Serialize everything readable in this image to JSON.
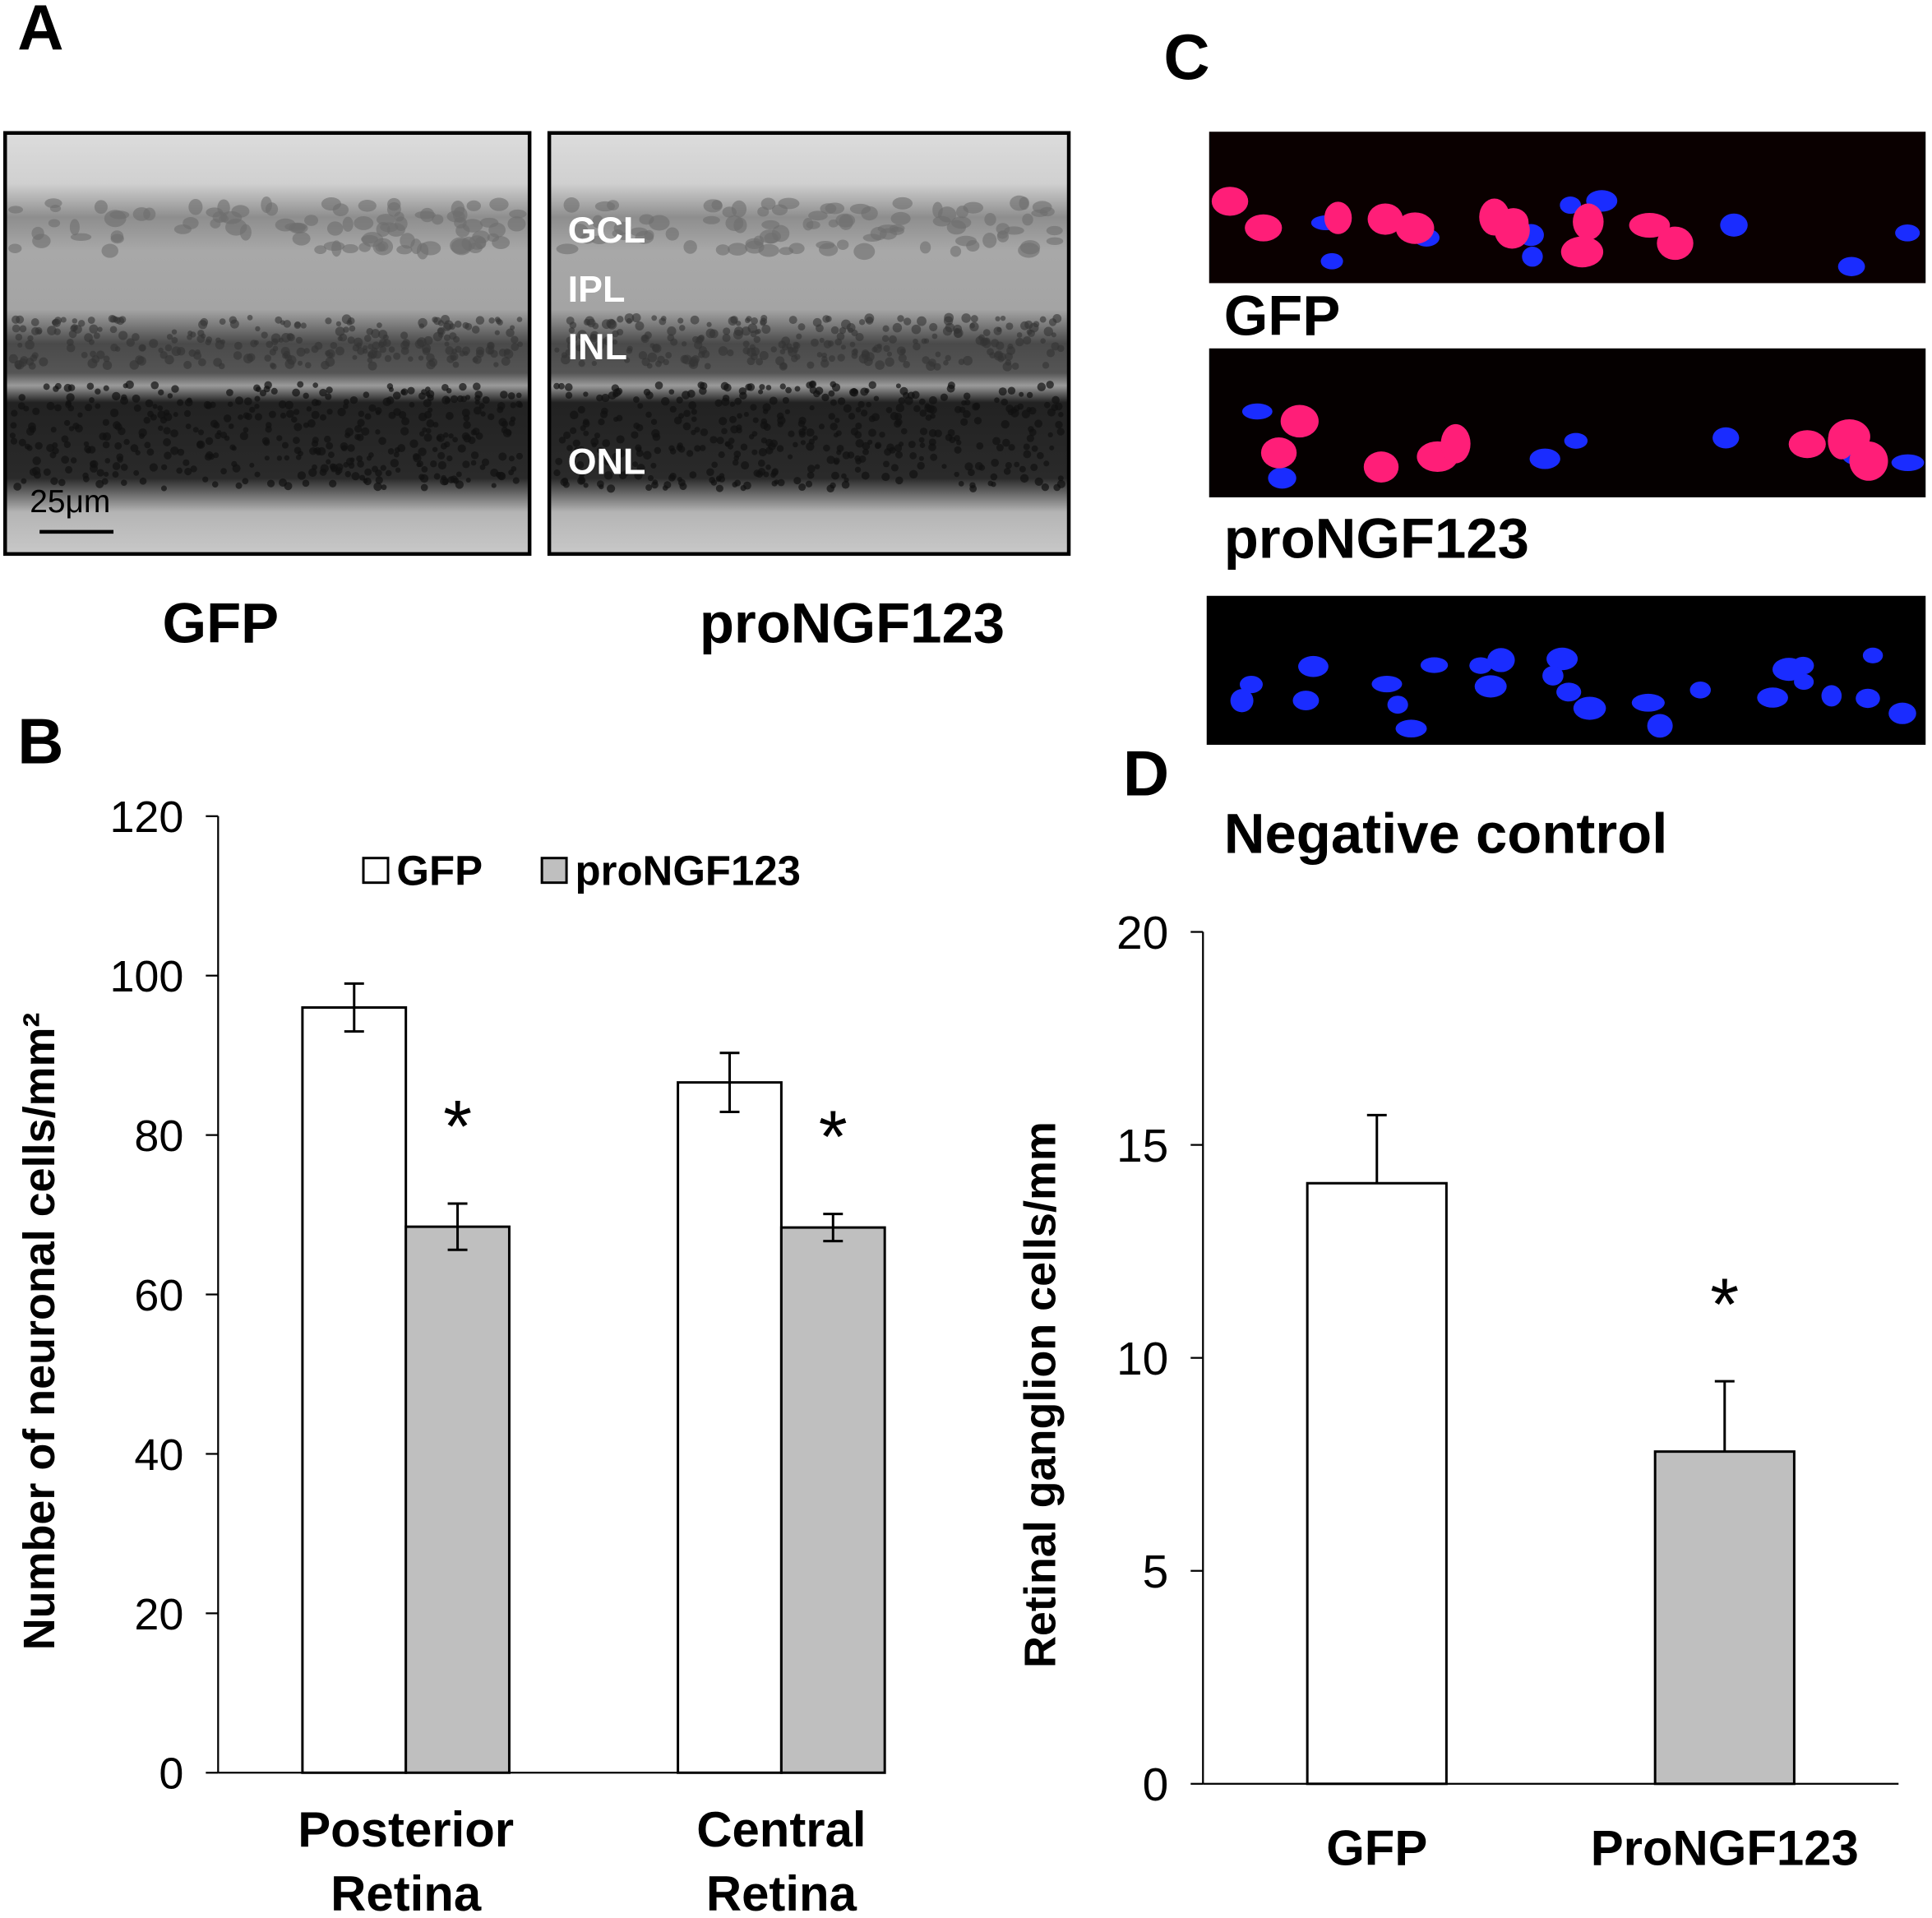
{
  "panel_labels": [
    "A",
    "B",
    "C",
    "D"
  ],
  "panel_a": {
    "images": [
      {
        "label": "GFP",
        "scale_bar": "25μm"
      },
      {
        "label": "proNGF123",
        "layers": [
          "GCL",
          "IPL",
          "INL",
          "ONL"
        ]
      }
    ]
  },
  "panel_c": {
    "images": [
      {
        "label": "GFP"
      },
      {
        "label": "proNGF123"
      },
      {
        "label": "Negative control"
      }
    ]
  },
  "chart_data": [
    {
      "type": "bar",
      "y_label": "Number of neuronal cells/mm²",
      "categories": [
        "Posterior Retina",
        "Central Retina"
      ],
      "series": [
        {
          "name": "GFP",
          "color": "#ffffff",
          "values": [
            96,
            86.6
          ],
          "errors": [
            3,
            3.7
          ]
        },
        {
          "name": "proNGF123",
          "color": "#bfbfbf",
          "values": [
            68.5,
            68.4
          ],
          "errors": [
            2.9,
            1.7
          ],
          "significance": [
            "*",
            "*"
          ]
        }
      ],
      "error_direction": "both",
      "legend": "top",
      "ylim": [
        0,
        120
      ],
      "yticks": [
        0,
        20,
        40,
        60,
        80,
        100,
        120
      ]
    },
    {
      "type": "bar",
      "y_label": "Retinal ganglion cells/mm",
      "categories": [
        "GFP",
        "ProNGF123"
      ],
      "series": [
        {
          "colors": [
            "#ffffff",
            "#bfbfbf"
          ],
          "values": [
            14.1,
            7.8
          ],
          "errors": [
            1.6,
            1.65
          ],
          "significance": [
            null,
            "*"
          ]
        }
      ],
      "error_direction": "up",
      "ylim": [
        0,
        20
      ],
      "yticks": [
        0,
        5,
        10,
        15,
        20
      ]
    }
  ]
}
